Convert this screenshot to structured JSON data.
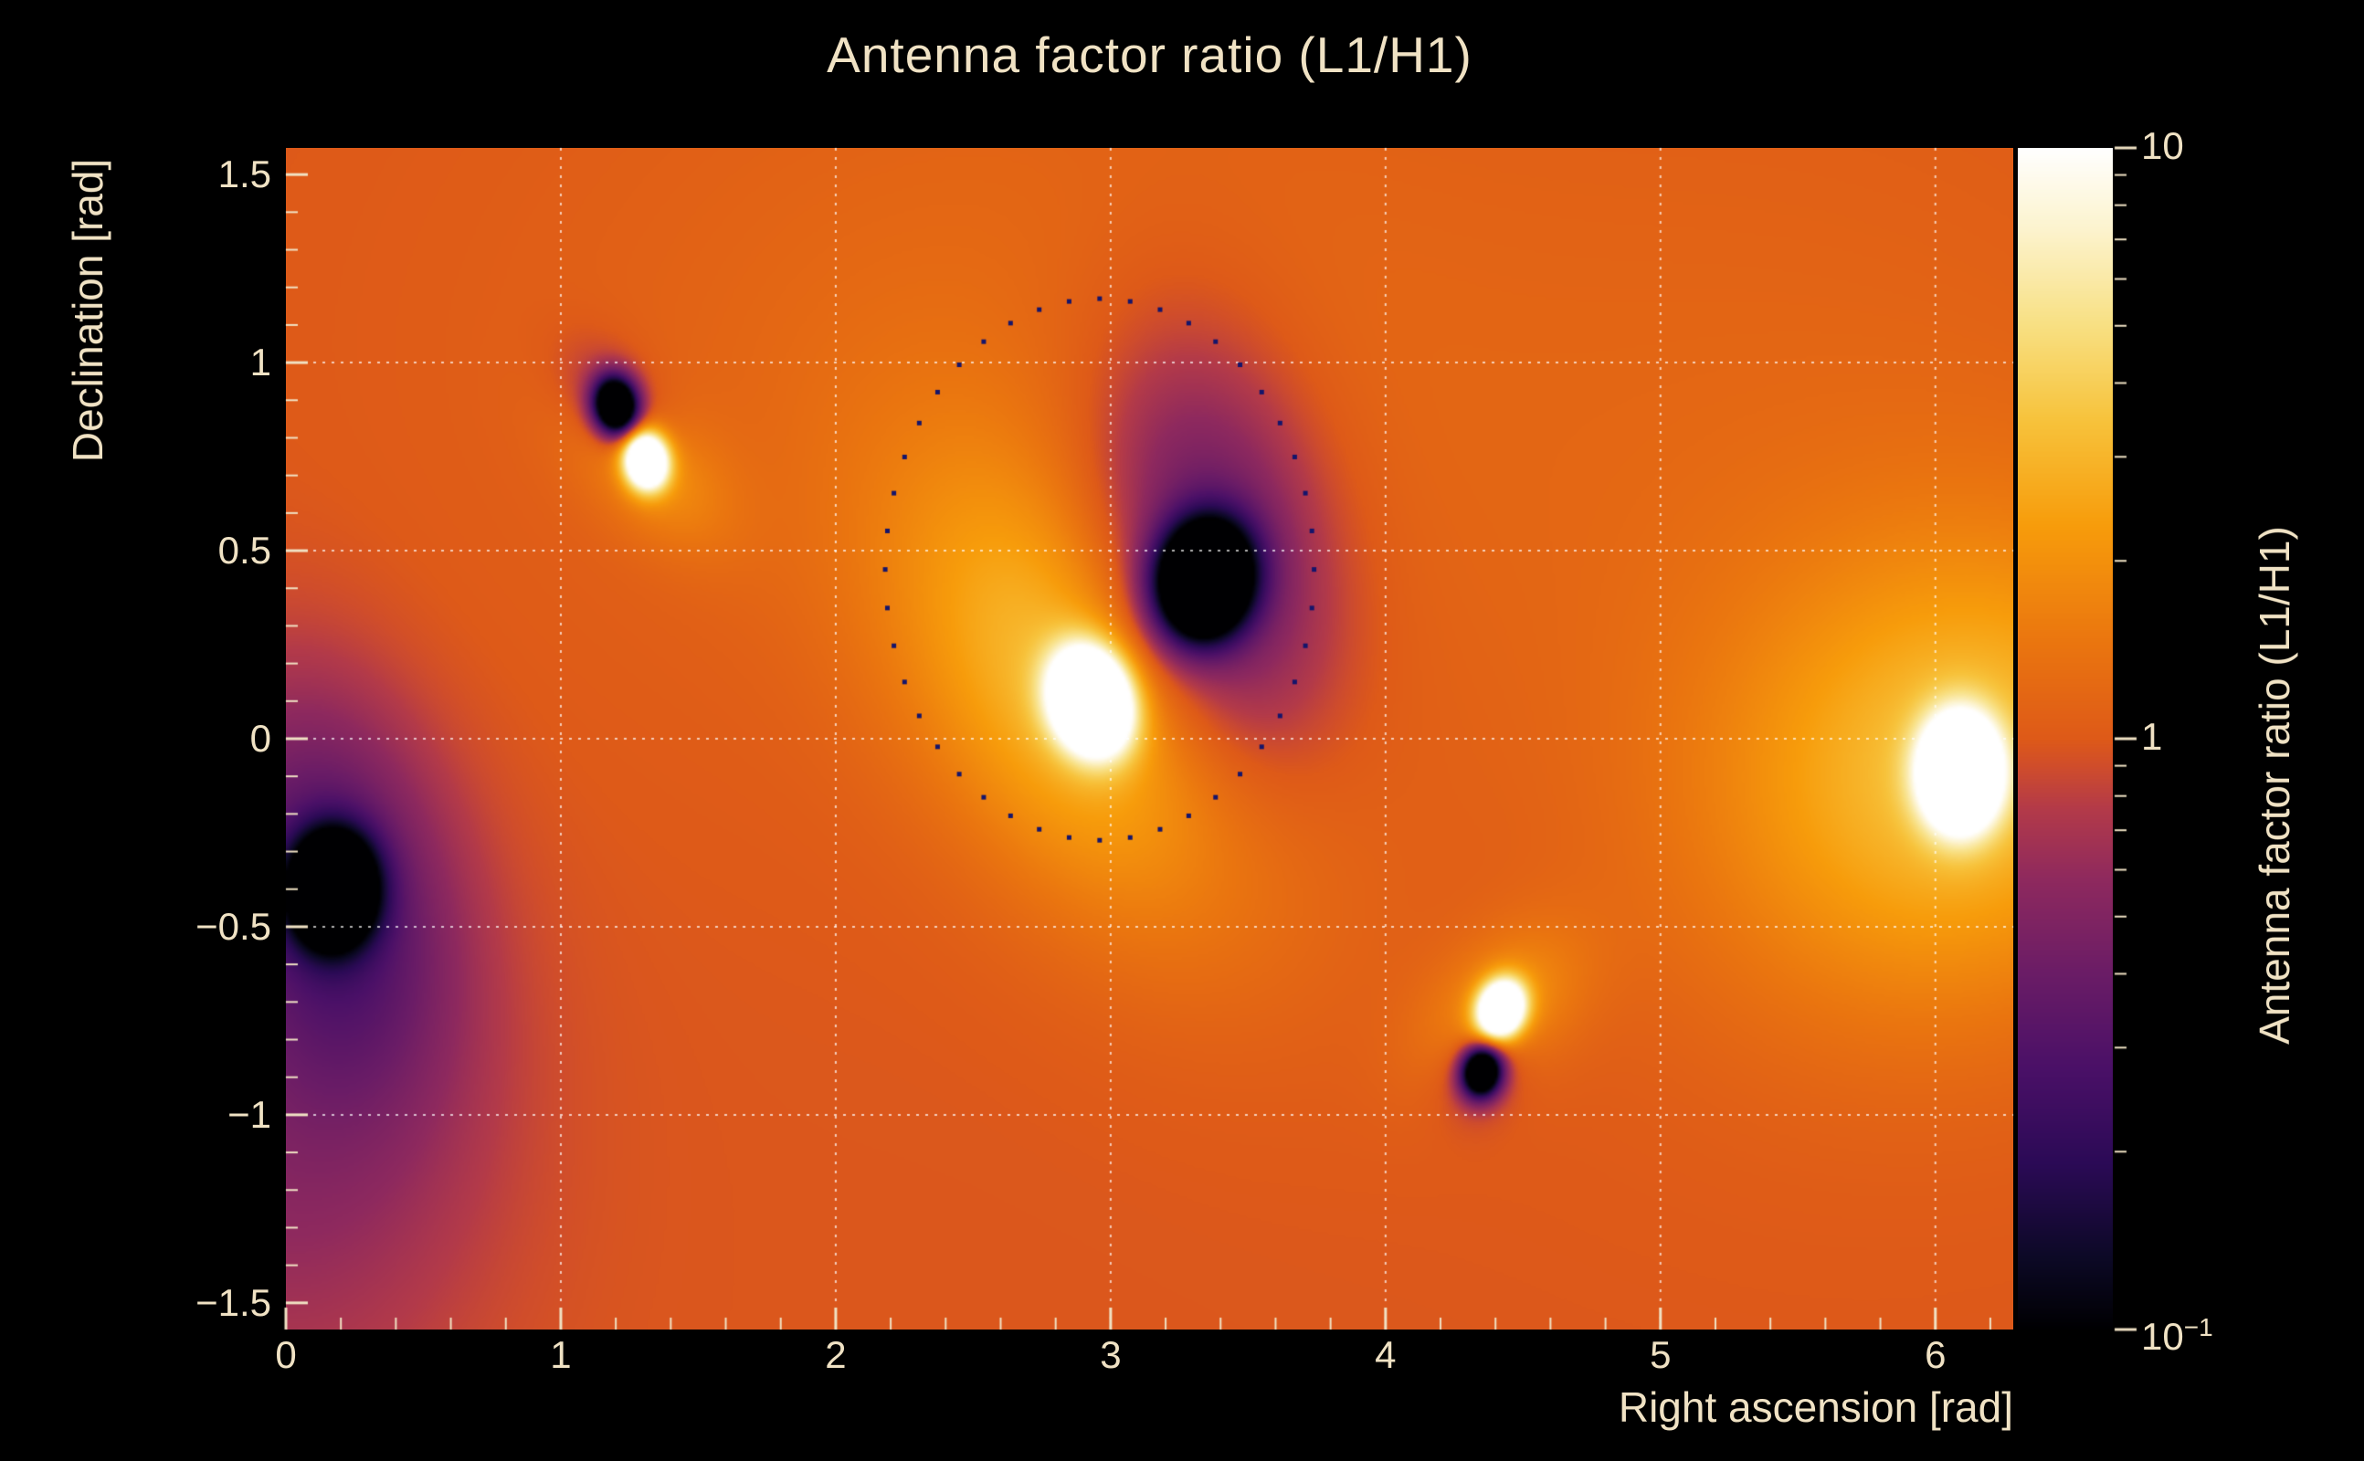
{
  "colors": {
    "background": "#000000",
    "text": "#f0e2c4",
    "grid": "#ffffff",
    "contour_dots": "#15156b"
  },
  "chart_data": {
    "type": "heatmap",
    "title": "Antenna factor ratio (L1/H1)",
    "xlabel": "Right ascension [rad]",
    "ylabel": "Declination [rad]",
    "zlabel": "Antenna factor ratio (L1/H1)",
    "z_scale": "log10",
    "xlim": [
      0,
      6.2832
    ],
    "ylim": [
      -1.5708,
      1.5708
    ],
    "zlim_log10": [
      -1,
      1
    ],
    "background_log10": -0.01,
    "grid_on": true,
    "x_tick_labels": [
      {
        "v": 0,
        "label": "0"
      },
      {
        "v": 1,
        "label": "1"
      },
      {
        "v": 2,
        "label": "2"
      },
      {
        "v": 3,
        "label": "3"
      },
      {
        "v": 4,
        "label": "4"
      },
      {
        "v": 5,
        "label": "5"
      },
      {
        "v": 6,
        "label": "6"
      }
    ],
    "x_minor_step": 0.2,
    "y_tick_labels": [
      {
        "v": 1.5,
        "label": "1.5"
      },
      {
        "v": 1,
        "label": "1"
      },
      {
        "v": 0.5,
        "label": "0.5"
      },
      {
        "v": 0,
        "label": "0"
      },
      {
        "v": -0.5,
        "label": "−0.5"
      },
      {
        "v": -1,
        "label": "−1"
      },
      {
        "v": -1.5,
        "label": "−1.5"
      }
    ],
    "y_minor_step": 0.1,
    "grid": {
      "x": [
        1,
        2,
        3,
        4,
        5,
        6
      ],
      "y": [
        -1,
        -0.5,
        0,
        0.5,
        1
      ]
    },
    "colorbar_tick_labels": [
      {
        "v": 10,
        "base": "10",
        "exp": ""
      },
      {
        "v": 1,
        "base": "1",
        "exp": ""
      },
      {
        "v": 0.1,
        "base": "10",
        "exp": "−1"
      }
    ],
    "palette_stops": [
      [
        0.0,
        "#000002"
      ],
      [
        0.06,
        "#0c0926"
      ],
      [
        0.14,
        "#2b0a56"
      ],
      [
        0.22,
        "#4a1067"
      ],
      [
        0.3,
        "#6a1c66"
      ],
      [
        0.38,
        "#8e295e"
      ],
      [
        0.44,
        "#b33a49"
      ],
      [
        0.475,
        "#cf4c2c"
      ],
      [
        0.5,
        "#de5a18"
      ],
      [
        0.58,
        "#ea750f"
      ],
      [
        0.68,
        "#f79c0b"
      ],
      [
        0.77,
        "#f7c33c"
      ],
      [
        0.85,
        "#f8e083"
      ],
      [
        0.93,
        "#fcf3cd"
      ],
      [
        1.0,
        "#ffffff"
      ]
    ],
    "features": [
      {
        "name": "max-main",
        "x": 2.93,
        "y": 0.1,
        "components": [
          {
            "amp": 2.3,
            "sx": 0.1,
            "sy": 0.085,
            "rot": -35
          },
          {
            "amp": 0.55,
            "sx": 0.55,
            "sy": 0.33,
            "rot": -38
          }
        ]
      },
      {
        "name": "min-main",
        "x": 3.34,
        "y": 0.42,
        "components": [
          {
            "amp": -2.3,
            "sx": 0.115,
            "sy": 0.1,
            "rot": 20
          },
          {
            "amp": -0.6,
            "sx": 0.3,
            "sy": 0.42,
            "rot": 15
          }
        ]
      },
      {
        "name": "max-upper-left",
        "x": 1.31,
        "y": 0.74,
        "components": [
          {
            "amp": 1.9,
            "sx": 0.055,
            "sy": 0.05,
            "rot": -30
          },
          {
            "amp": 0.3,
            "sx": 0.22,
            "sy": 0.12,
            "rot": -30
          }
        ]
      },
      {
        "name": "min-upper-left",
        "x": 1.2,
        "y": 0.885,
        "components": [
          {
            "amp": -1.9,
            "sx": 0.055,
            "sy": 0.05,
            "rot": -30
          },
          {
            "amp": -0.3,
            "sx": 0.16,
            "sy": 0.1,
            "rot": -30
          }
        ]
      },
      {
        "name": "min-left",
        "x": 0.17,
        "y": -0.4,
        "components": [
          {
            "amp": -2.1,
            "sx": 0.1,
            "sy": 0.095,
            "rot": 15
          },
          {
            "amp": -0.5,
            "sx": 0.28,
            "sy": 0.38,
            "rot": 25
          }
        ]
      },
      {
        "name": "dark-lower-left-region",
        "x": 0.0,
        "y": -1.05,
        "components": [
          {
            "amp": -0.25,
            "sx": 0.5,
            "sy": 0.5,
            "rot": 0
          }
        ]
      },
      {
        "name": "max-lower-mid",
        "x": 4.42,
        "y": -0.72,
        "components": [
          {
            "amp": 1.9,
            "sx": 0.06,
            "sy": 0.05,
            "rot": 25
          },
          {
            "amp": 0.3,
            "sx": 0.22,
            "sy": 0.13,
            "rot": 25
          }
        ]
      },
      {
        "name": "min-lower-mid",
        "x": 4.35,
        "y": -0.885,
        "components": [
          {
            "amp": -1.8,
            "sx": 0.05,
            "sy": 0.045,
            "rot": 20
          },
          {
            "amp": -0.22,
            "sx": 0.12,
            "sy": 0.09,
            "rot": 20
          }
        ]
      },
      {
        "name": "max-right",
        "x": 6.09,
        "y": -0.09,
        "components": [
          {
            "amp": 2.1,
            "sx": 0.095,
            "sy": 0.1,
            "rot": 0
          },
          {
            "amp": 0.5,
            "sx": 0.6,
            "sy": 0.42,
            "rot": 8
          }
        ]
      },
      {
        "name": "bright-upper-mid-region",
        "x": 2.7,
        "y": 1.0,
        "components": [
          {
            "amp": 0.1,
            "sx": 1.3,
            "sy": 0.7,
            "rot": 0
          }
        ]
      },
      {
        "name": "bright-right-region",
        "x": 5.6,
        "y": 0.5,
        "components": [
          {
            "amp": 0.08,
            "sx": 1.1,
            "sy": 0.9,
            "rot": 0
          }
        ]
      }
    ],
    "contour_circle": {
      "cx": 2.96,
      "cy": 0.45,
      "rx": 0.78,
      "ry": 0.72,
      "n_dots": 44,
      "dot_size": 5
    }
  }
}
